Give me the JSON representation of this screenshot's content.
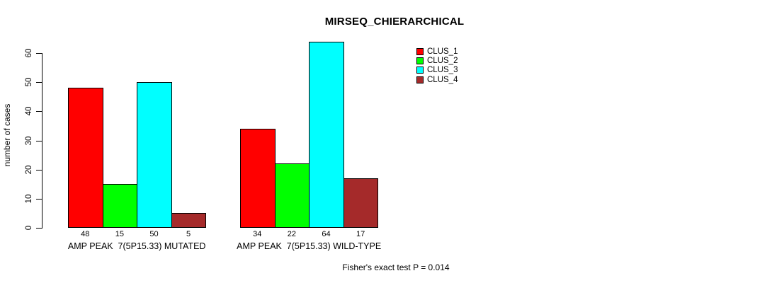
{
  "page": {
    "title": "MIRSEQ_CHIERARCHICAL",
    "footer": "Fisher's exact test P = 0.014"
  },
  "chart_data": {
    "type": "bar",
    "title": "MIRSEQ_CHIERARCHICAL",
    "xlabel": "",
    "ylabel": "number of cases",
    "ylim": [
      0,
      60
    ],
    "yticks": [
      0,
      10,
      20,
      30,
      40,
      50,
      60
    ],
    "grid": false,
    "legend_position": "top-right",
    "categories": [
      "AMP PEAK  7(5P15.33) MUTATED",
      "AMP PEAK  7(5P15.33) WILD-TYPE"
    ],
    "series": [
      {
        "name": "CLUS_1",
        "color": "#FF0000",
        "values": [
          48,
          34
        ]
      },
      {
        "name": "CLUS_2",
        "color": "#00FF00",
        "values": [
          15,
          22
        ]
      },
      {
        "name": "CLUS_3",
        "color": "#00FFFF",
        "values": [
          50,
          64
        ]
      },
      {
        "name": "CLUS_4",
        "color": "#A52A2A",
        "values": [
          5,
          17
        ]
      }
    ],
    "bar_value_labels": [
      [
        48,
        15,
        50,
        5
      ],
      [
        34,
        22,
        64,
        17
      ]
    ],
    "annotation": "Fisher's exact test P = 0.014",
    "axis_color": "#000000",
    "background_color": "#FFFFFF"
  }
}
